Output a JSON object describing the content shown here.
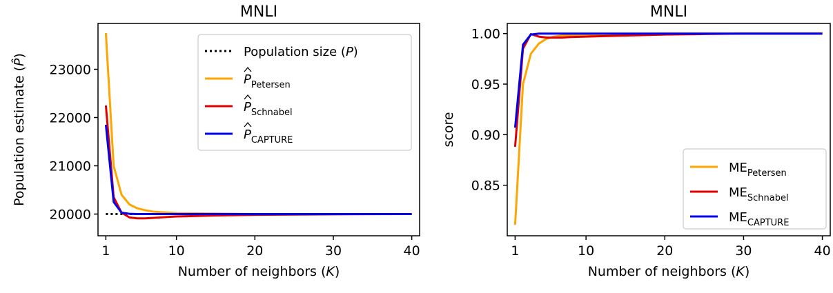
{
  "chart_data": [
    {
      "type": "line",
      "title": "MNLI",
      "xlabel": "Number of neighbors (",
      "xlabel_var": "K",
      "xlabel_end": ")",
      "ylabel": "Population estimate (",
      "ylabel_var": "P̂",
      "ylabel_end": ")",
      "xlim": [
        0,
        41
      ],
      "ylim": [
        19550,
        23950
      ],
      "xticks": [
        1,
        10,
        20,
        30,
        40
      ],
      "yticks": [
        20000,
        21000,
        22000,
        23000
      ],
      "legend_position": "top-right",
      "grid": false,
      "series": [
        {
          "name": "Population size (",
          "name_var": "P",
          "name_end": ")",
          "color": "#000000",
          "style": "dotted",
          "x": [
            1,
            2,
            3,
            4,
            5,
            6,
            7,
            8,
            10,
            15,
            20,
            25,
            30,
            35,
            40
          ],
          "y": [
            20000,
            20000,
            20000,
            20000,
            20000,
            20000,
            20000,
            20000,
            20000,
            20000,
            20000,
            20000,
            20000,
            20000,
            20000
          ]
        },
        {
          "name": "P",
          "name_sub": "Petersen",
          "hat": true,
          "color": "#FFA500",
          "style": "solid",
          "x": [
            1,
            2,
            3,
            4,
            5,
            6,
            7,
            8,
            10,
            15,
            20,
            25,
            30,
            35,
            40
          ],
          "y": [
            23750,
            21000,
            20400,
            20200,
            20120,
            20080,
            20050,
            20040,
            20020,
            20010,
            20000,
            20000,
            20000,
            20000,
            20000
          ]
        },
        {
          "name": "P",
          "name_sub": "Schnabel",
          "hat": true,
          "color": "#E00000",
          "style": "solid",
          "x": [
            1,
            2,
            3,
            4,
            5,
            6,
            7,
            8,
            10,
            15,
            20,
            25,
            30,
            35,
            40
          ],
          "y": [
            22250,
            20350,
            20030,
            19930,
            19910,
            19910,
            19920,
            19930,
            19950,
            19970,
            19985,
            19990,
            19995,
            19998,
            20000
          ]
        },
        {
          "name": "P",
          "name_sub": "CAPTURE",
          "hat": true,
          "color": "#0000EE",
          "style": "solid",
          "x": [
            1,
            2,
            3,
            4,
            5,
            6,
            7,
            8,
            10,
            15,
            20,
            25,
            30,
            35,
            40
          ],
          "y": [
            21850,
            20250,
            20030,
            20005,
            20000,
            20000,
            20000,
            20000,
            20000,
            20000,
            20000,
            20000,
            20000,
            20000,
            20000
          ]
        }
      ]
    },
    {
      "type": "line",
      "title": "MNLI",
      "xlabel": "Number of neighbors (",
      "xlabel_var": "K",
      "xlabel_end": ")",
      "ylabel": "score",
      "xlim": [
        0,
        41
      ],
      "ylim": [
        0.8,
        1.01
      ],
      "xticks": [
        1,
        10,
        20,
        30,
        40
      ],
      "yticks": [
        0.85,
        0.9,
        0.95,
        1.0
      ],
      "ytick_labels": [
        "0.85",
        "0.90",
        "0.95",
        "1.00"
      ],
      "legend_position": "bottom-right",
      "grid": false,
      "series": [
        {
          "name": "ME",
          "name_sub": "Petersen",
          "color": "#FFA500",
          "style": "solid",
          "x": [
            1,
            2,
            3,
            4,
            5,
            6,
            7,
            8,
            10,
            15,
            20,
            25,
            30,
            35,
            40
          ],
          "y": [
            0.811,
            0.95,
            0.98,
            0.99,
            0.995,
            0.997,
            0.998,
            0.9985,
            0.999,
            0.9995,
            1.0,
            1.0,
            1.0,
            1.0,
            1.0
          ]
        },
        {
          "name": "ME",
          "name_sub": "Schnabel",
          "color": "#E00000",
          "style": "solid",
          "x": [
            1,
            2,
            3,
            4,
            5,
            6,
            7,
            8,
            10,
            15,
            20,
            25,
            30,
            35,
            40
          ],
          "y": [
            0.888,
            0.985,
            0.9995,
            0.997,
            0.996,
            0.996,
            0.996,
            0.9965,
            0.997,
            0.998,
            0.999,
            0.9995,
            1.0,
            1.0,
            1.0
          ]
        },
        {
          "name": "ME",
          "name_sub": "CAPTURE",
          "color": "#0000EE",
          "style": "solid",
          "x": [
            1,
            2,
            3,
            4,
            5,
            6,
            7,
            8,
            10,
            15,
            20,
            25,
            30,
            35,
            40
          ],
          "y": [
            0.907,
            0.989,
            0.999,
            1.0,
            1.0,
            1.0,
            1.0,
            1.0,
            1.0,
            1.0,
            1.0,
            1.0,
            1.0,
            1.0,
            1.0
          ]
        }
      ]
    }
  ]
}
